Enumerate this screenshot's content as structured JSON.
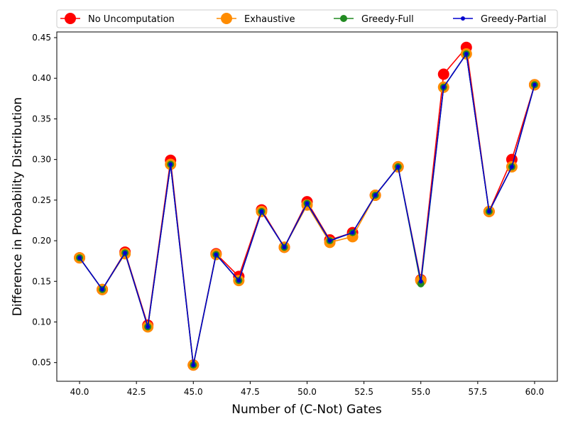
{
  "chart_data": {
    "type": "line",
    "xlabel": "Number of (C-Not) Gates",
    "ylabel": "Difference in Probability Distribution",
    "xlim": [
      39,
      61
    ],
    "ylim": [
      0.027,
      0.457
    ],
    "xticks": [
      40.0,
      42.5,
      45.0,
      47.5,
      50.0,
      52.5,
      55.0,
      57.5,
      60.0
    ],
    "xtick_labels": [
      "40.0",
      "42.5",
      "45.0",
      "47.5",
      "50.0",
      "52.5",
      "55.0",
      "57.5",
      "60.0"
    ],
    "yticks": [
      0.05,
      0.1,
      0.15,
      0.2,
      0.25,
      0.3,
      0.35,
      0.4,
      0.45
    ],
    "ytick_labels": [
      "0.05",
      "0.10",
      "0.15",
      "0.20",
      "0.25",
      "0.30",
      "0.35",
      "0.40",
      "0.45"
    ],
    "grid": false,
    "legend_position": "top",
    "x": [
      40,
      41,
      42,
      43,
      44,
      45,
      46,
      47,
      48,
      49,
      50,
      51,
      52,
      53,
      54,
      55,
      56,
      57,
      58,
      59,
      60
    ],
    "series": [
      {
        "name": "No Uncomputation",
        "color": "#ff0000",
        "marker_size": 8,
        "values": [
          0.179,
          0.14,
          0.186,
          0.096,
          0.299,
          0.047,
          0.184,
          0.156,
          0.238,
          0.192,
          0.248,
          0.201,
          0.21,
          0.256,
          0.291,
          0.152,
          0.405,
          0.438,
          0.236,
          0.3,
          0.392
        ]
      },
      {
        "name": "Exhaustive",
        "color": "#ff8c00",
        "marker_size": 8,
        "values": [
          0.179,
          0.14,
          0.184,
          0.094,
          0.294,
          0.047,
          0.183,
          0.151,
          0.236,
          0.192,
          0.244,
          0.198,
          0.205,
          0.256,
          0.291,
          0.151,
          0.389,
          0.43,
          0.236,
          0.291,
          0.392
        ]
      },
      {
        "name": "Greedy-Full",
        "color": "#228b22",
        "marker_size": 5,
        "values": [
          0.179,
          0.14,
          0.185,
          0.094,
          0.294,
          0.047,
          0.183,
          0.151,
          0.236,
          0.192,
          0.246,
          0.2,
          0.21,
          0.256,
          0.291,
          0.147,
          0.389,
          0.43,
          0.236,
          0.291,
          0.392
        ]
      },
      {
        "name": "Greedy-Partial",
        "color": "#0000cd",
        "marker_size": 3,
        "values": [
          0.179,
          0.14,
          0.185,
          0.094,
          0.294,
          0.047,
          0.183,
          0.151,
          0.236,
          0.192,
          0.246,
          0.2,
          0.21,
          0.256,
          0.291,
          0.15,
          0.389,
          0.43,
          0.236,
          0.291,
          0.392
        ]
      }
    ]
  }
}
